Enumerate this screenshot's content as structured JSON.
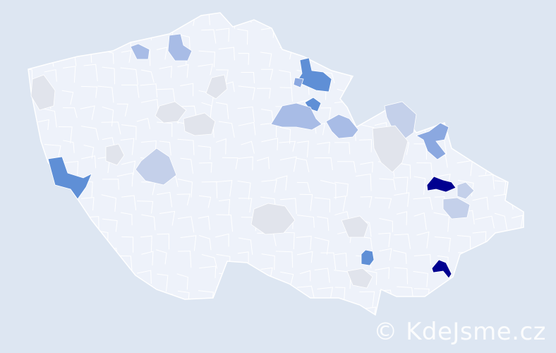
{
  "map": {
    "colors": {
      "background": "#dde6f2",
      "base": "#eef2fa",
      "border": "#ffffff",
      "level_grey": "#e1e4ec",
      "level_light": "#c4d0ea",
      "level_mid": "#a8bce6",
      "level_blue": "#8ba8e0",
      "level_strong": "#5f8fd6",
      "level_max": "#000090"
    },
    "regions": [
      {
        "level": "max"
      },
      {
        "level": "max"
      },
      {
        "level": "strong"
      },
      {
        "level": "strong"
      },
      {
        "level": "strong"
      },
      {
        "level": "strong"
      },
      {
        "level": "blue"
      },
      {
        "level": "blue"
      },
      {
        "level": "mid"
      },
      {
        "level": "mid"
      },
      {
        "level": "mid"
      },
      {
        "level": "mid"
      },
      {
        "level": "light"
      },
      {
        "level": "light"
      },
      {
        "level": "light"
      },
      {
        "level": "light"
      },
      {
        "level": "grey"
      },
      {
        "level": "grey"
      },
      {
        "level": "grey"
      },
      {
        "level": "grey"
      },
      {
        "level": "grey"
      },
      {
        "level": "grey"
      },
      {
        "level": "grey"
      },
      {
        "level": "grey"
      },
      {
        "level": "grey"
      }
    ]
  },
  "watermark": "© KdeJsme.cz"
}
